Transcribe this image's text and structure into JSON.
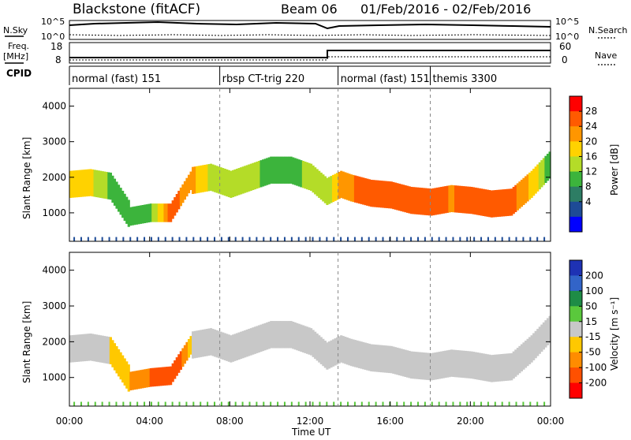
{
  "header": {
    "radar": "Blackstone (fitACF)",
    "beam": "Beam 06",
    "dates": "01/Feb/2016 - 02/Feb/2016"
  },
  "top_panels": {
    "nsky_label": "N.Sky",
    "nsearch_label": "N.Search",
    "noise_ticks": [
      "10^5",
      "10^0"
    ],
    "freq_label": "Freq.",
    "freq_unit": "[MHz]",
    "freq_ticks": [
      "18",
      "8"
    ],
    "nave_label": "Nave",
    "nave_ticks": [
      "60",
      "0"
    ],
    "cpid_label": "CPID"
  },
  "cpid_segments": [
    {
      "label": "normal (fast) 151",
      "start_h": 0.0
    },
    {
      "label": "rbsp CT-trig 220",
      "start_h": 7.5
    },
    {
      "label": "normal (fast) 151",
      "start_h": 13.4
    },
    {
      "label": "themis 3300",
      "start_h": 18.0
    }
  ],
  "power_colorbar": {
    "label": "Power [dB]",
    "ticks": [
      "28",
      "24",
      "20",
      "16",
      "12",
      "8",
      "4"
    ],
    "colors": [
      "#ff0000",
      "#ff5a00",
      "#ff9600",
      "#ffd200",
      "#b4dc28",
      "#3cb43c",
      "#2d7d64",
      "#1e4b96",
      "#0000ff"
    ]
  },
  "velocity_colorbar": {
    "label": "Velocity [m s⁻¹]",
    "ticks": [
      "200",
      "100",
      "50",
      "15",
      "-15",
      "-50",
      "-100",
      "-200"
    ],
    "colors": [
      "#1e32b4",
      "#3264c8",
      "#1e8c46",
      "#5ac83c",
      "#c8c8c8",
      "#ffc800",
      "#ff8c00",
      "#ff5000",
      "#ff0000"
    ]
  },
  "chart_data": {
    "type": "heatmap",
    "xlabel": "Time UT",
    "ylabel": "Slant Range [km]",
    "xlim": [
      0,
      24
    ],
    "ylim": [
      200,
      4500
    ],
    "xticks": [
      "00:00",
      "04:00",
      "08:00",
      "12:00",
      "16:00",
      "20:00",
      "00:00"
    ],
    "yticks": [
      "1000",
      "2000",
      "3000",
      "4000"
    ],
    "ytick_values": [
      1000,
      2000,
      3000,
      4000
    ],
    "power_band": {
      "hours": [
        0,
        1,
        2,
        3,
        4,
        5,
        6,
        7,
        8,
        9,
        10,
        11,
        12,
        12.8,
        13.5,
        14,
        15,
        16,
        17,
        18,
        19,
        20,
        21,
        22,
        23,
        24
      ],
      "center_km": [
        1800,
        1850,
        1750,
        900,
        1000,
        1000,
        1900,
        2000,
        1800,
        2000,
        2200,
        2200,
        2000,
        1600,
        1800,
        1700,
        1550,
        1500,
        1350,
        1300,
        1400,
        1350,
        1250,
        1300,
        1800,
        2400
      ],
      "peak_db": [
        20,
        18,
        12,
        10,
        12,
        26,
        22,
        16,
        14,
        14,
        12,
        12,
        14,
        14,
        22,
        24,
        26,
        28,
        28,
        26,
        24,
        26,
        28,
        26,
        20,
        10
      ]
    },
    "velocity_band": {
      "hours": [
        0,
        1,
        2,
        3,
        4,
        5,
        6,
        7,
        8,
        9,
        10,
        11,
        12,
        12.8,
        13.5,
        14,
        15,
        16,
        17,
        18,
        19,
        20,
        21,
        22,
        23,
        24
      ],
      "center_km": [
        1800,
        1850,
        1750,
        900,
        1000,
        1050,
        1900,
        2000,
        1800,
        2000,
        2200,
        2200,
        2000,
        1600,
        1800,
        1700,
        1550,
        1500,
        1350,
        1300,
        1400,
        1350,
        1250,
        1300,
        1800,
        2400
      ],
      "velocity_ms": [
        -15,
        -15,
        -15,
        -50,
        -100,
        -200,
        -15,
        -15,
        -15,
        -15,
        -15,
        -15,
        -15,
        -15,
        -15,
        -15,
        -15,
        -15,
        -15,
        -15,
        -15,
        -15,
        -15,
        -15,
        -15,
        -15
      ]
    }
  }
}
